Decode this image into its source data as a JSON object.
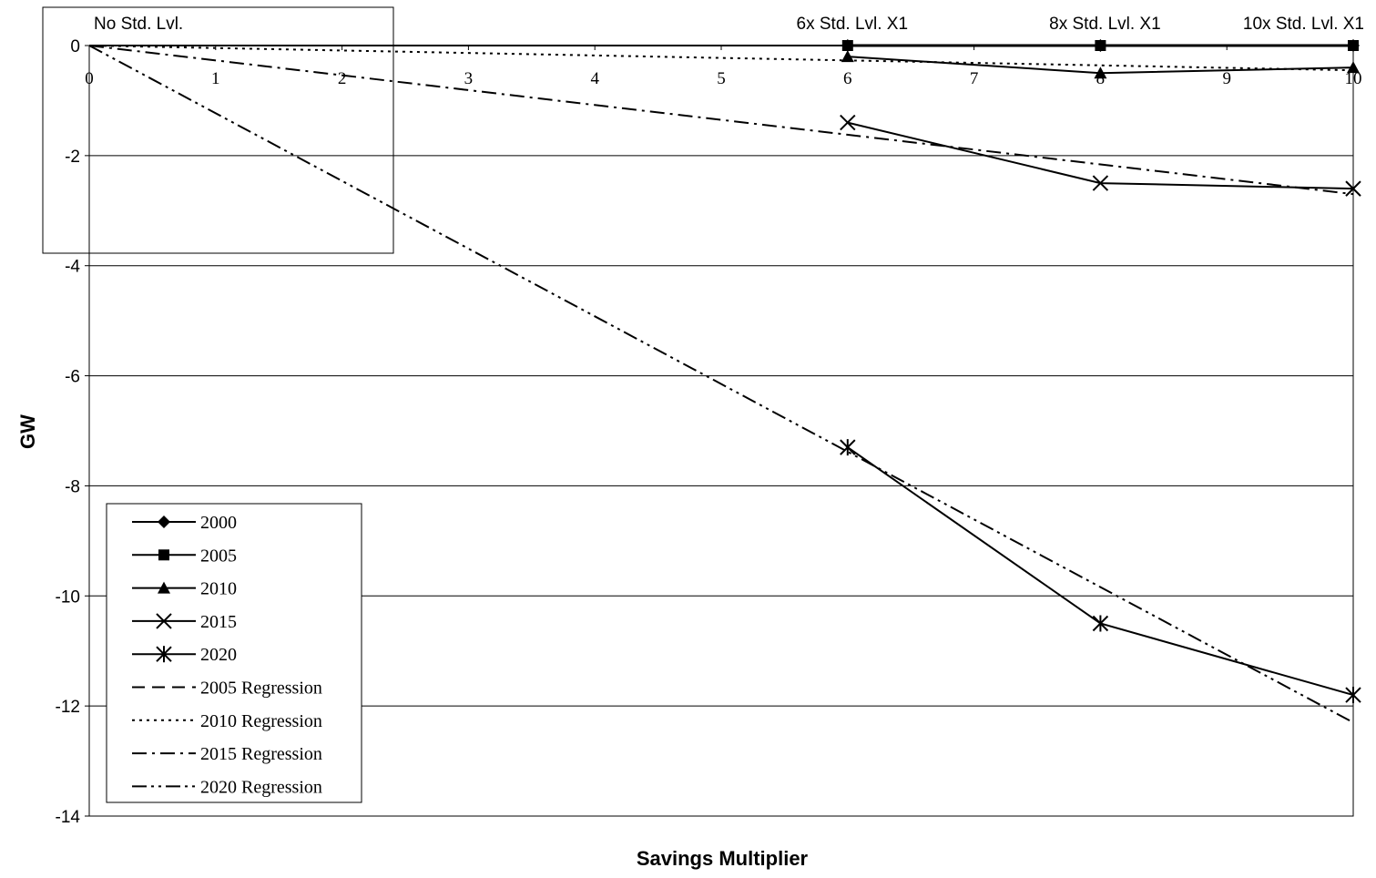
{
  "chart_data": {
    "type": "line",
    "xlabel": "Savings Multiplier",
    "ylabel": "GW",
    "xlim": [
      0,
      10
    ],
    "ylim": [
      -14,
      0
    ],
    "x_ticks": [
      0,
      1,
      2,
      3,
      4,
      5,
      6,
      7,
      8,
      9,
      10
    ],
    "y_ticks": [
      0,
      -2,
      -4,
      -6,
      -8,
      -10,
      -12,
      -14
    ],
    "grid": "horizontal",
    "legend_position": "bottom-left",
    "annotations": [
      {
        "text": "No Std. Lvl.",
        "x": 0
      },
      {
        "text": "6x Std. Lvl. X1",
        "x": 6
      },
      {
        "text": "8x Std. Lvl. X1",
        "x": 8
      },
      {
        "text": "10x Std. Lvl. X1",
        "x": 10
      }
    ],
    "series": [
      {
        "name": "2000",
        "x": [
          6,
          8,
          10
        ],
        "values": [
          0,
          0,
          0
        ],
        "marker": "diamond",
        "style": "solid"
      },
      {
        "name": "2005",
        "x": [
          6,
          8,
          10
        ],
        "values": [
          0,
          0,
          0
        ],
        "marker": "square",
        "style": "solid"
      },
      {
        "name": "2010",
        "x": [
          6,
          8,
          10
        ],
        "values": [
          -0.2,
          -0.5,
          -0.4
        ],
        "marker": "triangle",
        "style": "solid"
      },
      {
        "name": "2015",
        "x": [
          6,
          8,
          10
        ],
        "values": [
          -1.4,
          -2.5,
          -2.6
        ],
        "marker": "x",
        "style": "solid"
      },
      {
        "name": "2020",
        "x": [
          6,
          8,
          10
        ],
        "values": [
          -7.3,
          -10.5,
          -11.8
        ],
        "marker": "asterisk",
        "style": "solid"
      },
      {
        "name": "2005 Regression",
        "x": [
          0,
          10
        ],
        "values": [
          0,
          0
        ],
        "marker": "none",
        "style": "dashed"
      },
      {
        "name": "2010 Regression",
        "x": [
          0,
          10
        ],
        "values": [
          0,
          -0.45
        ],
        "marker": "none",
        "style": "dotted"
      },
      {
        "name": "2015 Regression",
        "x": [
          0,
          10
        ],
        "values": [
          0,
          -2.7
        ],
        "marker": "none",
        "style": "dashdot"
      },
      {
        "name": "2020 Regression",
        "x": [
          0,
          10
        ],
        "values": [
          0,
          -12.3
        ],
        "marker": "none",
        "style": "dashdotdot"
      }
    ]
  }
}
